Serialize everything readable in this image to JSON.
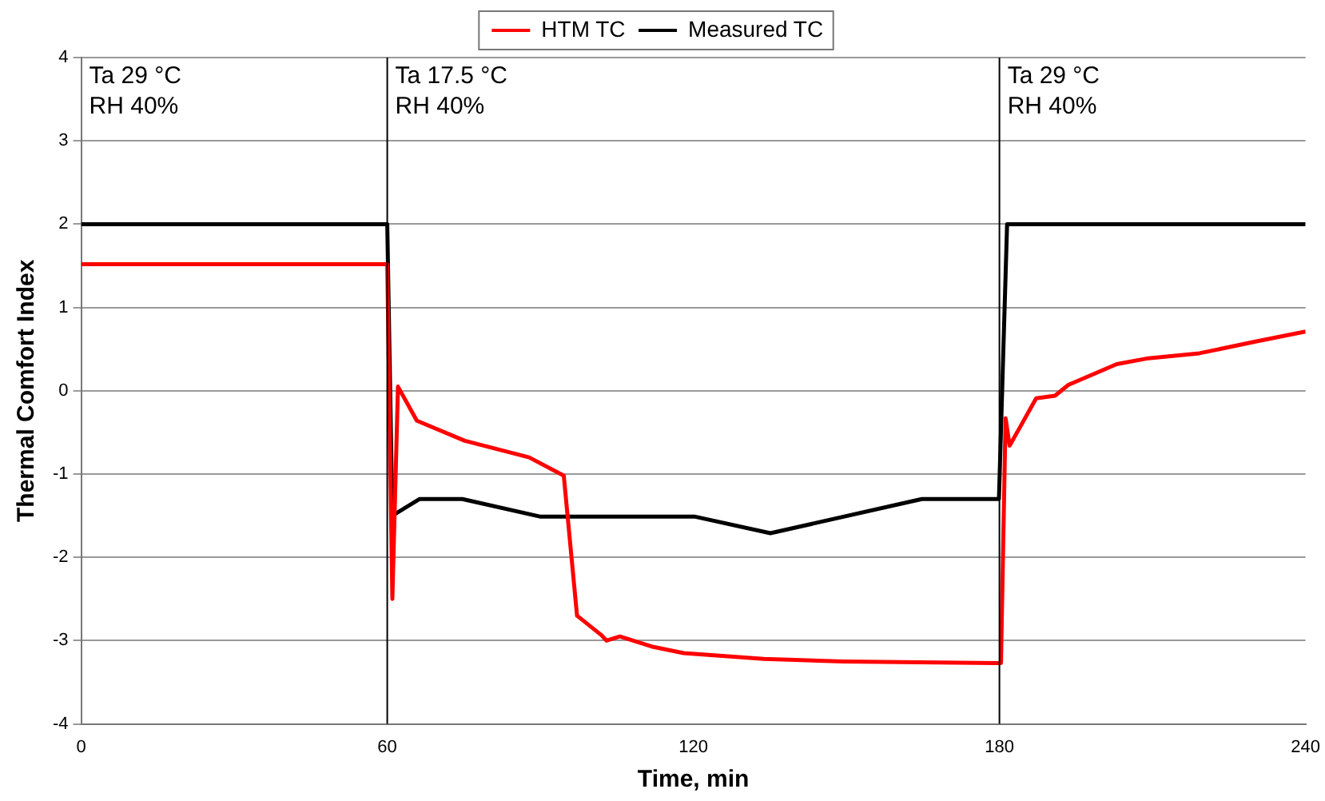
{
  "chart_data": {
    "type": "line",
    "xlabel": "Time, min",
    "ylabel": "Thermal Comfort Index",
    "xlim": [
      0,
      240
    ],
    "xticks": [
      0,
      60,
      120,
      180,
      240
    ],
    "ylim": [
      -4,
      4
    ],
    "yticks": [
      -4,
      -3,
      -2,
      -1,
      0,
      1,
      2,
      3,
      4
    ],
    "grid": "y",
    "legend": "top",
    "marker": "none",
    "line_style": "solid",
    "ref_lines": [
      {
        "axis": "x",
        "value": 60,
        "color": "#000000",
        "label": "Ta 17.5 °C\nRH 40%"
      },
      {
        "axis": "x",
        "value": 180,
        "color": "#000000",
        "label": "Ta 29 °C\nRH 40%"
      }
    ],
    "annotations": [
      "Ta 29 °C\nRH 40%"
    ],
    "series": [
      {
        "name": "HTM TC",
        "color": "#ff0000",
        "x": [
          0,
          30,
          60,
          61,
          62.1,
          65.8,
          75.2,
          87.8,
          94.6,
          97.2,
          101.9,
          103,
          105.6,
          111.8,
          118.1,
          133.8,
          149.5,
          179.4,
          180.3,
          181.2,
          182,
          187.2,
          190.9,
          193.5,
          203,
          209.2,
          219.2,
          230.2,
          240
        ],
        "values": [
          1.52,
          1.52,
          1.52,
          -2.5,
          0.05,
          -0.36,
          -0.6,
          -0.8,
          -1.02,
          -2.7,
          -2.93,
          -3.0,
          -2.95,
          -3.07,
          -3.15,
          -3.22,
          -3.25,
          -3.27,
          -3.27,
          -0.33,
          -0.66,
          -0.09,
          -0.06,
          0.07,
          0.32,
          0.39,
          0.45,
          0.59,
          0.71
        ]
      },
      {
        "name": "Measured TC",
        "color": "#000000",
        "x": [
          0,
          60,
          61,
          66.3,
          74.7,
          89.9,
          120.2,
          135.1,
          164.8,
          179.9,
          181.5,
          240
        ],
        "values": [
          2,
          2,
          -1.5,
          -1.3,
          -1.3,
          -1.51,
          -1.51,
          -1.71,
          -1.3,
          -1.3,
          2,
          2
        ]
      }
    ]
  }
}
